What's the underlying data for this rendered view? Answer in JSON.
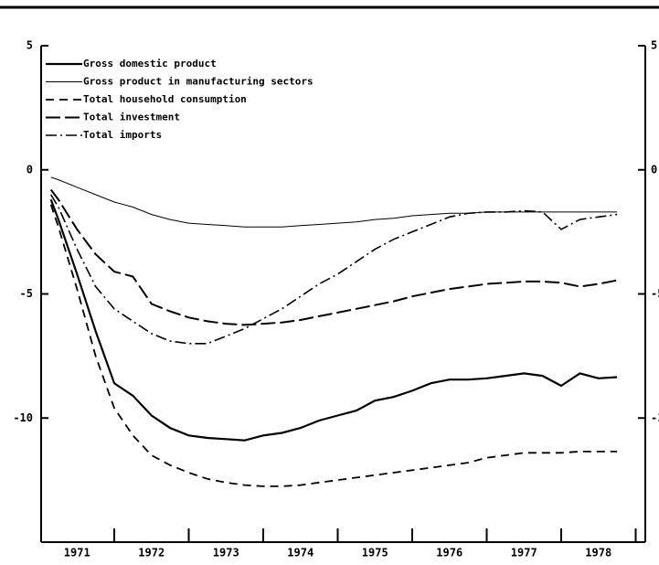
{
  "chart_data": {
    "type": "line",
    "x": [
      1971.15,
      1971.25,
      1971.5,
      1971.75,
      1972,
      1972.25,
      1972.5,
      1972.75,
      1973,
      1973.25,
      1973.5,
      1973.75,
      1974,
      1974.25,
      1974.5,
      1974.75,
      1975,
      1975.25,
      1975.5,
      1975.75,
      1976,
      1976.25,
      1976.5,
      1976.75,
      1977,
      1977.25,
      1977.5,
      1977.75,
      1978,
      1978.25,
      1978.5,
      1978.75
    ],
    "series": [
      {
        "name": "Gross domestic product",
        "color": "#000000",
        "style": "solid",
        "values": [
          -1.2,
          -2.0,
          -4.2,
          -6.5,
          -8.6,
          -9.1,
          -9.9,
          -10.4,
          -10.7,
          -10.8,
          -10.85,
          -10.9,
          -10.7,
          -10.6,
          -10.4,
          -10.1,
          -9.9,
          -9.7,
          -9.3,
          -9.15,
          -8.9,
          -8.6,
          -8.45,
          -8.45,
          -8.4,
          -8.3,
          -8.2,
          -8.3,
          -8.7,
          -8.2,
          -8.4,
          -8.35
        ]
      },
      {
        "name": "Gross product in manufacturing sectors",
        "color": "#000000",
        "style": "thin",
        "values": [
          -0.3,
          -0.4,
          -0.7,
          -1.0,
          -1.3,
          -1.5,
          -1.8,
          -2.0,
          -2.15,
          -2.2,
          -2.25,
          -2.3,
          -2.3,
          -2.3,
          -2.25,
          -2.2,
          -2.15,
          -2.1,
          -2.0,
          -1.95,
          -1.85,
          -1.8,
          -1.75,
          -1.75,
          -1.7,
          -1.7,
          -1.7,
          -1.7,
          -1.7,
          -1.7,
          -1.7,
          -1.7
        ]
      },
      {
        "name": "Total household consumption",
        "color": "#000000",
        "style": "dashed",
        "values": [
          -1.4,
          -2.3,
          -4.8,
          -7.5,
          -9.6,
          -10.7,
          -11.5,
          -11.9,
          -12.2,
          -12.45,
          -12.6,
          -12.7,
          -12.75,
          -12.75,
          -12.7,
          -12.6,
          -12.5,
          -12.4,
          -12.3,
          -12.2,
          -12.1,
          -12.0,
          -11.9,
          -11.8,
          -11.6,
          -11.5,
          -11.4,
          -11.4,
          -11.4,
          -11.35,
          -11.35,
          -11.35
        ]
      },
      {
        "name": "Total investment",
        "color": "#000000",
        "style": "longdash",
        "values": [
          -0.8,
          -1.2,
          -2.4,
          -3.4,
          -4.1,
          -4.3,
          -5.4,
          -5.7,
          -5.95,
          -6.1,
          -6.2,
          -6.25,
          -6.2,
          -6.15,
          -6.05,
          -5.9,
          -5.75,
          -5.6,
          -5.45,
          -5.3,
          -5.1,
          -4.95,
          -4.8,
          -4.7,
          -4.6,
          -4.55,
          -4.5,
          -4.5,
          -4.55,
          -4.7,
          -4.6,
          -4.45
        ]
      },
      {
        "name": "Total imports",
        "color": "#000000",
        "style": "dashdot",
        "values": [
          -1.0,
          -1.5,
          -3.2,
          -4.7,
          -5.6,
          -6.1,
          -6.6,
          -6.9,
          -7.0,
          -7.0,
          -6.7,
          -6.4,
          -6.0,
          -5.6,
          -5.1,
          -4.6,
          -4.2,
          -3.7,
          -3.2,
          -2.8,
          -2.5,
          -2.2,
          -1.9,
          -1.75,
          -1.7,
          -1.7,
          -1.65,
          -1.7,
          -2.4,
          -2.0,
          -1.9,
          -1.8
        ]
      }
    ],
    "xlim": [
      1971,
      1979.1
    ],
    "xticks": [
      1971,
      1972,
      1973,
      1974,
      1975,
      1976,
      1977,
      1978
    ],
    "ylim": [
      -15,
      5
    ],
    "yticks": [
      5,
      0,
      -5,
      -10
    ],
    "legend": "upper left"
  }
}
